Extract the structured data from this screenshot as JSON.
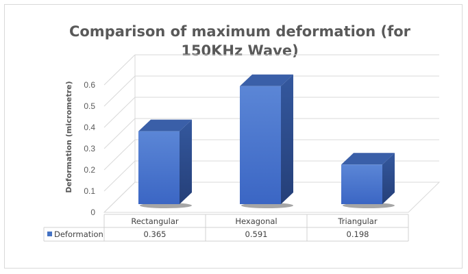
{
  "chart_data": {
    "type": "bar",
    "title": "Comparison of maximum deformation (for 150KHz Wave)",
    "ylabel": "Deformation (micrometre)",
    "xlabel": "",
    "categories": [
      "Rectangular",
      "Hexagonal",
      "Triangular"
    ],
    "series": [
      {
        "name": "Deformation",
        "values": [
          0.365,
          0.591,
          0.198
        ],
        "value_labels": [
          "0.365",
          "0.591",
          "0.198"
        ]
      }
    ],
    "yticks": [
      "0",
      "0.1",
      "0.2",
      "0.3",
      "0.4",
      "0.5",
      "0.6"
    ],
    "ylim": [
      0,
      0.6
    ],
    "grid": true,
    "legend": "data-table",
    "style": "3d-column",
    "colors": {
      "bar_front": "#4472c4",
      "bar_side": "#2e4f8f",
      "bar_top": "#3a61a8"
    }
  }
}
